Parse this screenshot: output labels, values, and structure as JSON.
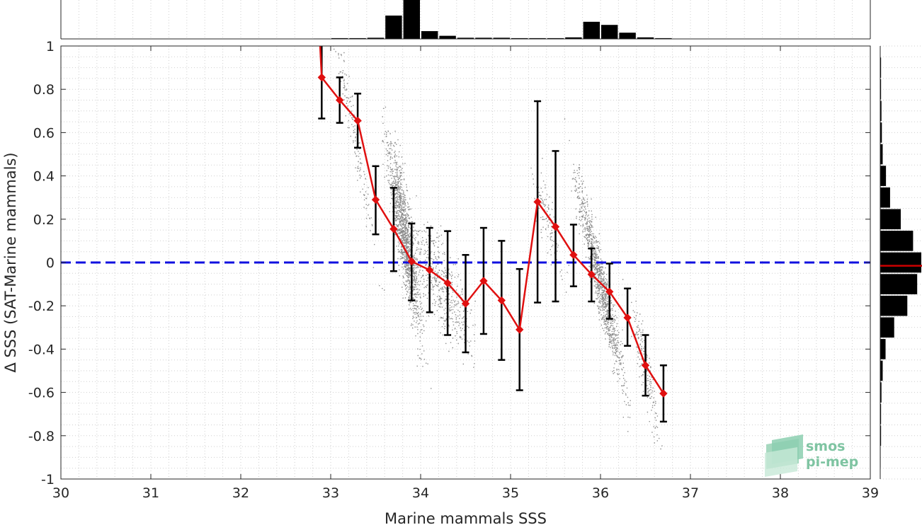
{
  "chart_data": {
    "type": "scatter",
    "xlabel": "Marine mammals SSS",
    "ylabel": "Δ SSS (SAT-Marine mammals)",
    "xlim": [
      30,
      39
    ],
    "ylim": [
      -1,
      1
    ],
    "xticks": [
      30,
      31,
      32,
      33,
      34,
      35,
      36,
      37,
      38,
      39
    ],
    "yticks": [
      -1,
      -0.8,
      -0.6,
      -0.4,
      -0.2,
      0,
      0.2,
      0.4,
      0.6,
      0.8,
      1
    ],
    "grid": true,
    "reference_line": {
      "y": 0,
      "style": "dashed",
      "color": "#1010e0"
    },
    "binned_mean": {
      "color": "#e01010",
      "x": [
        32.9,
        33.1,
        33.3,
        33.5,
        33.7,
        33.9,
        34.1,
        34.3,
        34.5,
        34.7,
        34.9,
        35.1,
        35.3,
        35.5,
        35.7,
        35.9,
        36.1,
        36.3,
        36.5,
        36.7
      ],
      "y": [
        0.855,
        0.75,
        0.655,
        0.29,
        0.155,
        0.005,
        -0.035,
        -0.095,
        -0.19,
        -0.085,
        -0.175,
        -0.31,
        0.28,
        0.165,
        0.035,
        -0.055,
        -0.135,
        -0.255,
        -0.475,
        -0.605
      ],
      "lower": [
        0.665,
        0.645,
        0.53,
        0.13,
        -0.04,
        -0.175,
        -0.23,
        -0.335,
        -0.415,
        -0.33,
        -0.45,
        -0.59,
        -0.185,
        -0.18,
        -0.11,
        -0.18,
        -0.26,
        -0.385,
        -0.615,
        -0.735
      ],
      "upper": [
        1.05,
        0.855,
        0.78,
        0.445,
        0.345,
        0.18,
        0.16,
        0.145,
        0.035,
        0.16,
        0.1,
        -0.03,
        0.745,
        0.515,
        0.175,
        0.065,
        -0.005,
        -0.12,
        -0.335,
        -0.475
      ]
    },
    "scatter_color": "#8c8c8c",
    "x_histogram": {
      "bin_centers": [
        32.9,
        33.1,
        33.3,
        33.5,
        33.7,
        33.9,
        34.1,
        34.3,
        34.5,
        34.7,
        34.9,
        35.1,
        35.3,
        35.5,
        35.7,
        35.9,
        36.1,
        36.3,
        36.5,
        36.7
      ],
      "heights": [
        0.01,
        0.02,
        0.02,
        0.03,
        0.6,
        1.0,
        0.2,
        0.08,
        0.03,
        0.03,
        0.03,
        0.02,
        0.02,
        0.02,
        0.04,
        0.44,
        0.36,
        0.16,
        0.04,
        0.02
      ]
    },
    "y_histogram": {
      "bin_centers": [
        0.9,
        0.8,
        0.7,
        0.6,
        0.5,
        0.4,
        0.3,
        0.2,
        0.1,
        0.0,
        -0.1,
        -0.2,
        -0.3,
        -0.4,
        -0.5,
        -0.6,
        -0.7,
        -0.8,
        -0.9
      ],
      "heights": [
        0.02,
        0.02,
        0.03,
        0.04,
        0.06,
        0.14,
        0.24,
        0.5,
        0.8,
        1.0,
        0.9,
        0.66,
        0.34,
        0.13,
        0.06,
        0.03,
        0.02,
        0.02,
        0.01
      ],
      "median": -0.015,
      "median_color": "#cc0000"
    }
  },
  "logo": {
    "line1": "smos",
    "line2": "pi-mep"
  }
}
